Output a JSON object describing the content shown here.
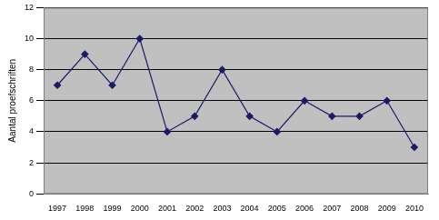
{
  "chart_data": {
    "type": "line",
    "y_label": "Aantal proefschriften",
    "categories": [
      "1997",
      "1998",
      "1999",
      "2000",
      "2001",
      "2002",
      "2003",
      "2004",
      "2005",
      "2006",
      "2007",
      "2008",
      "2009",
      "2010"
    ],
    "values": [
      7,
      9,
      7,
      10,
      4,
      5,
      8,
      5,
      4,
      6,
      5,
      5,
      6,
      3
    ],
    "color": "#1a1a66",
    "marker": "diamond",
    "ylim": [
      0,
      12
    ],
    "yticks": [
      0,
      2,
      4,
      6,
      8,
      10,
      12
    ],
    "grid": true
  }
}
